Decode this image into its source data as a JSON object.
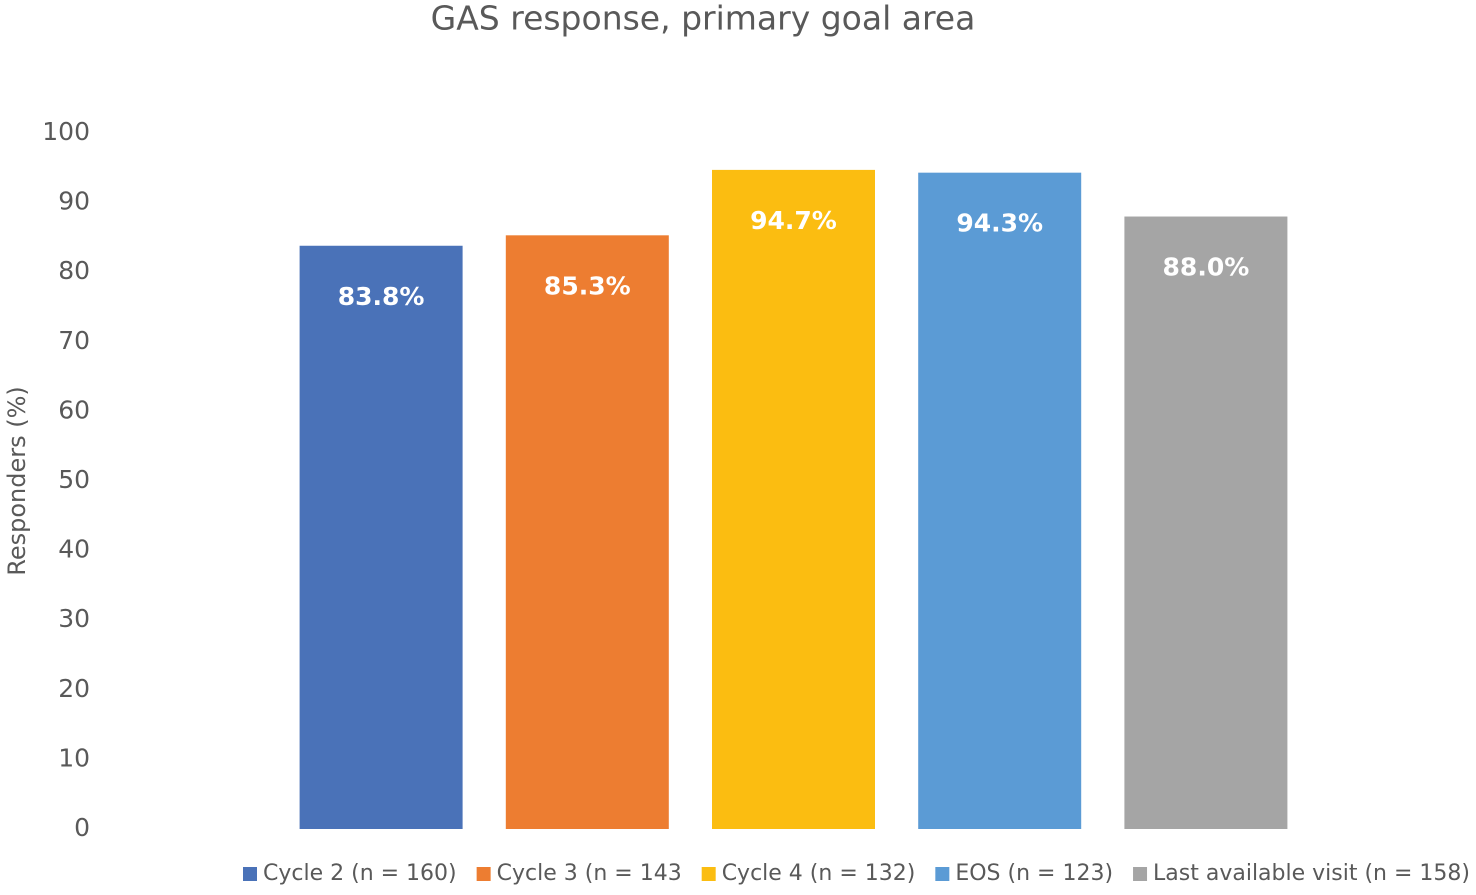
{
  "chart_data": {
    "type": "bar",
    "title": "GAS response, primary goal area",
    "y_label": "Responders (%)",
    "series": [
      {
        "name": "Cycle 2 (n = 160)",
        "color": "#4a72b8",
        "values": [
          83.8
        ],
        "value_labels": [
          "83.8%"
        ]
      },
      {
        "name": "Cycle 3 (n = 143",
        "color": "#ed7d31",
        "values": [
          85.3
        ],
        "value_labels": [
          "85.3%"
        ]
      },
      {
        "name": "Cycle 4 (n = 132)",
        "color": "#fbbd11",
        "values": [
          94.7
        ],
        "value_labels": [
          "94.7%"
        ]
      },
      {
        "name": "EOS (n = 123)",
        "color": "#5b9bd5",
        "values": [
          94.3
        ],
        "value_labels": [
          "94.3%"
        ]
      },
      {
        "name": "Last available visit (n = 158)",
        "color": "#a5a5a5",
        "values": [
          88.0
        ],
        "value_labels": [
          "88.0%"
        ]
      }
    ],
    "ylim": [
      0,
      100
    ],
    "yticks": [
      0,
      10,
      20,
      30,
      40,
      50,
      60,
      70,
      80,
      90,
      100
    ],
    "grid": false,
    "legend": "bottom"
  }
}
